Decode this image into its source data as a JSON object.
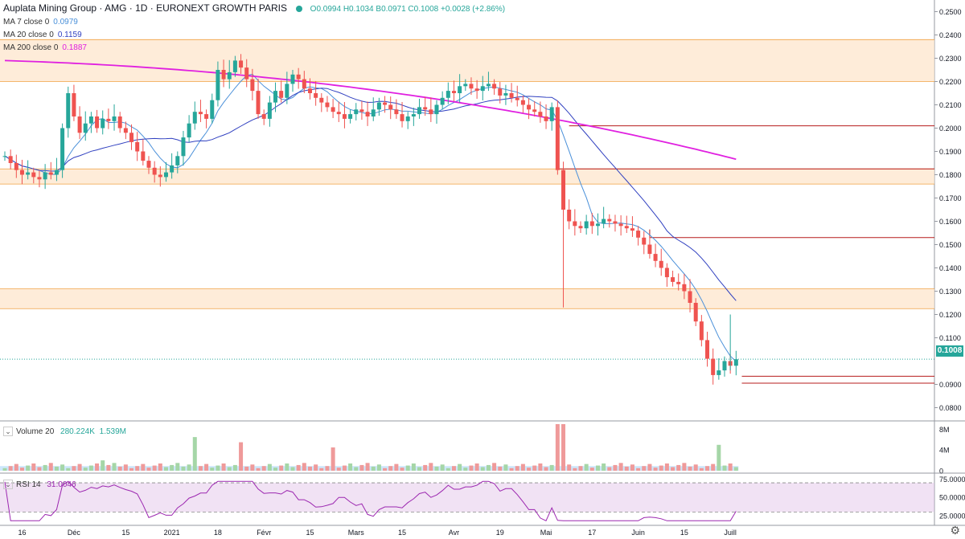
{
  "header": {
    "title": "Auplata Mining Group · AMG · 1D · EURONEXT GROWTH PARIS",
    "ohlc": "O0.0994  H0.1034  B0.0971  C0.1008  +0.0028 (+2.86%)"
  },
  "ma_legend": [
    {
      "label": "MA 7 close 0",
      "value": "0.0979",
      "color": "#4a90d9"
    },
    {
      "label": "MA 20 close 0",
      "value": "0.1159",
      "color": "#3040c0"
    },
    {
      "label": "MA 200 close 0",
      "value": "0.1887",
      "color": "#e020e0"
    }
  ],
  "volume_legend": {
    "label": "Volume 20",
    "v1": "280.224K",
    "v2": "1.539M"
  },
  "rsi_legend": {
    "label": "RSI 14",
    "value": "31.0046"
  },
  "last_price": "0.1008",
  "colors": {
    "up": "#26a69a",
    "down": "#ef5350",
    "zone_fill": "#fde6cc",
    "zone_border": "#f0a040",
    "ma200": "#e020e0",
    "ma20": "#3040c0",
    "ma7": "#4a90d9",
    "rsi": "#9c27b0"
  },
  "chart_data": {
    "type": "candlestick",
    "price_ylim": [
      0.075,
      0.255
    ],
    "price_ticks": [
      "0.2500",
      "0.2400",
      "0.2300",
      "0.2200",
      "0.2100",
      "0.2000",
      "0.1900",
      "0.1800",
      "0.1700",
      "0.1600",
      "0.1500",
      "0.1400",
      "0.1300",
      "0.1200",
      "0.1100",
      "0.0900",
      "0.0800"
    ],
    "x_labels": [
      "16",
      "Déc",
      "15",
      "2021",
      "18",
      "Févr",
      "15",
      "Mars",
      "15",
      "Avr",
      "19",
      "Mai",
      "17",
      "Juin",
      "15",
      "Juill"
    ],
    "close": [
      0.188,
      0.185,
      0.182,
      0.18,
      0.181,
      0.179,
      0.178,
      0.181,
      0.18,
      0.182,
      0.2,
      0.215,
      0.205,
      0.198,
      0.202,
      0.205,
      0.2,
      0.204,
      0.203,
      0.205,
      0.2,
      0.198,
      0.194,
      0.19,
      0.186,
      0.183,
      0.18,
      0.179,
      0.181,
      0.184,
      0.188,
      0.196,
      0.202,
      0.207,
      0.206,
      0.204,
      0.212,
      0.225,
      0.221,
      0.224,
      0.229,
      0.226,
      0.221,
      0.216,
      0.206,
      0.204,
      0.211,
      0.216,
      0.213,
      0.219,
      0.223,
      0.221,
      0.217,
      0.215,
      0.213,
      0.211,
      0.209,
      0.207,
      0.206,
      0.204,
      0.206,
      0.208,
      0.207,
      0.205,
      0.208,
      0.211,
      0.21,
      0.208,
      0.206,
      0.203,
      0.205,
      0.206,
      0.209,
      0.208,
      0.206,
      0.21,
      0.213,
      0.216,
      0.215,
      0.218,
      0.219,
      0.217,
      0.216,
      0.218,
      0.219,
      0.217,
      0.214,
      0.215,
      0.213,
      0.212,
      0.21,
      0.208,
      0.207,
      0.205,
      0.203,
      0.209,
      0.182,
      0.165,
      0.16,
      0.158,
      0.157,
      0.16,
      0.158,
      0.159,
      0.161,
      0.16,
      0.159,
      0.158,
      0.157,
      0.156,
      0.153,
      0.15,
      0.146,
      0.143,
      0.14,
      0.136,
      0.134,
      0.133,
      0.13,
      0.125,
      0.117,
      0.109,
      0.101,
      0.094,
      0.096,
      0.1,
      0.098,
      0.1008
    ],
    "volume_scale_max": 9,
    "volume_ticks": [
      "8M",
      "4M",
      "0"
    ],
    "volume_highlights": [
      {
        "index": 17,
        "value": 2.0
      },
      {
        "index": 33,
        "value": 6.5
      },
      {
        "index": 41,
        "value": 5.5
      },
      {
        "index": 57,
        "value": 4.5
      },
      {
        "index": 96,
        "value": 9.0
      },
      {
        "index": 97,
        "value": 9.0
      },
      {
        "index": 124,
        "value": 5.0
      }
    ],
    "rsi_ticks": [
      "75.0000",
      "50.0000",
      "25.0000"
    ],
    "rsi_bands": [
      70,
      30
    ],
    "rsi_last": 31.0046,
    "horizontal_levels": [
      {
        "price": 0.201,
        "from_index": 98
      },
      {
        "price": 0.1825,
        "from_index": 96
      },
      {
        "price": 0.153,
        "from_index": 112
      },
      {
        "price": 0.0935,
        "from_index": 128
      },
      {
        "price": 0.0905,
        "from_index": 128
      }
    ],
    "zones": [
      [
        0.22,
        0.238
      ],
      [
        0.176,
        0.1825
      ],
      [
        0.1225,
        0.131
      ]
    ]
  }
}
